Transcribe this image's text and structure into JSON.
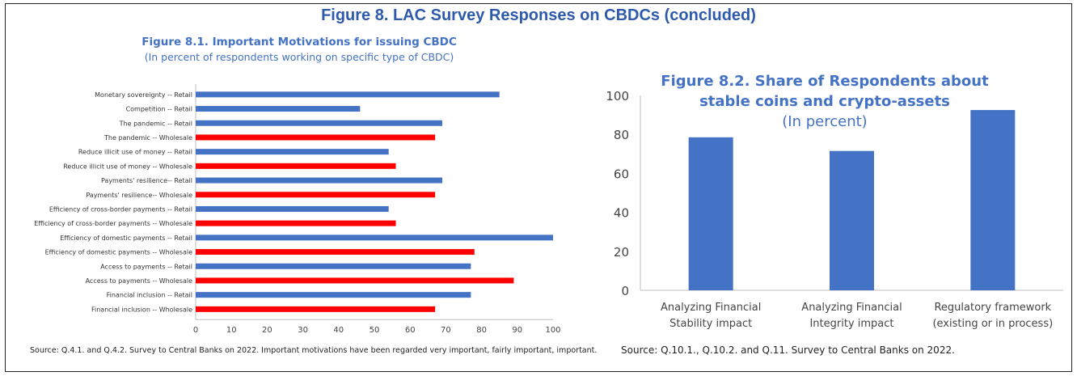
{
  "figure": {
    "title": "Figure 8. LAC Survey Responses on CBDCs (concluded)"
  },
  "chart_data": [
    {
      "type": "bar",
      "orientation": "horizontal",
      "title": "Figure 8.1. Important Motivations for issuing CBDC",
      "subtitle": "(In percent of respondents working on specific type of CBDC)",
      "categories": [
        "Monetary sovereignty -- Retail",
        "Competition -- Retail",
        "The pandemic -- Retail",
        "The pandemic -- Wholesale",
        "Reduce illicit use of money -- Retail",
        "Reduce illicit use of money -- Wholesale",
        "Payments' resilience-- Retail",
        "Payments' resilience-- Wholesale",
        "Efficiency of cross-border payments -- Retail",
        "Efficiency of cross-border payments -- Wholesale",
        "Efficiency of domestic payments -- Retail",
        "Efficiency of domestic payments -- Wholesale",
        "Access to payments -- Retail",
        "Access to payments -- Wholesale",
        "Financial inclusion -- Retail",
        "Financial inclusion -- Wholesale"
      ],
      "values": [
        85,
        46,
        69,
        67,
        54,
        56,
        69,
        67,
        54,
        56,
        100,
        78,
        77,
        89,
        77,
        67
      ],
      "colors": [
        "#4472c4",
        "#4472c4",
        "#4472c4",
        "#ff0000",
        "#4472c4",
        "#ff0000",
        "#4472c4",
        "#ff0000",
        "#4472c4",
        "#ff0000",
        "#4472c4",
        "#ff0000",
        "#4472c4",
        "#ff0000",
        "#4472c4",
        "#ff0000"
      ],
      "xlim": [
        0,
        100
      ],
      "xticks": [
        0,
        10,
        20,
        30,
        40,
        50,
        60,
        70,
        80,
        90,
        100
      ],
      "grid": false,
      "source": "Source: Q.4.1. and Q.4.2. Survey to Central Banks on 2022. Important motivations have been regarded very important, fairly important, important."
    },
    {
      "type": "bar",
      "title_lines": [
        "Figure 8.2. Share of Respondents about",
        "stable coins and crypto-assets"
      ],
      "subtitle": "(In percent)",
      "categories": [
        [
          "Analyzing Financial",
          "Stability impact"
        ],
        [
          "Analyzing Financial",
          "Integrity impact"
        ],
        [
          "Regulatory framework",
          "(existing or in process)"
        ]
      ],
      "values": [
        78.5,
        71.5,
        92.5
      ],
      "color": "#4472c4",
      "ylim": [
        0,
        100
      ],
      "yticks": [
        0,
        20,
        40,
        60,
        80,
        100
      ],
      "grid": false,
      "source": "Source: Q.10.1., Q.10.2. and Q.11. Survey to Central Banks on 2022."
    }
  ]
}
